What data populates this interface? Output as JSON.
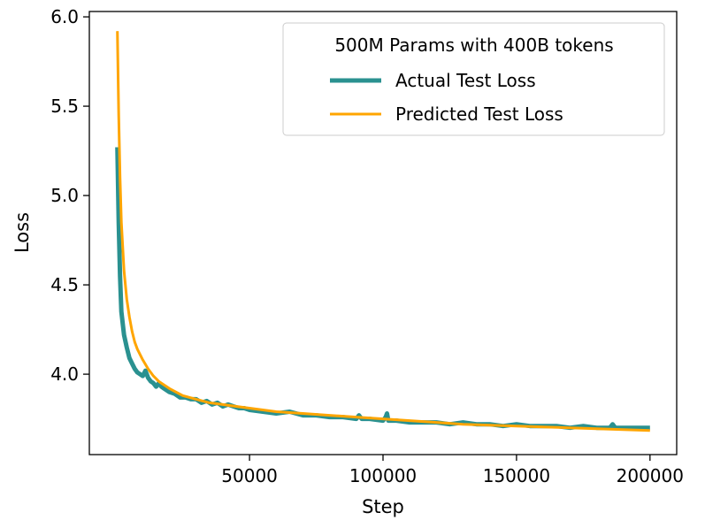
{
  "chart_data": {
    "type": "line",
    "title": "",
    "xlabel": "Step",
    "ylabel": "Loss",
    "xlim": [
      -10000,
      210000
    ],
    "ylim": [
      3.55,
      6.03
    ],
    "xticks": [
      50000,
      100000,
      150000,
      200000
    ],
    "yticks": [
      4.0,
      4.5,
      5.0,
      5.5,
      6.0
    ],
    "xtick_labels": [
      "50000",
      "100000",
      "150000",
      "200000"
    ],
    "ytick_labels": [
      "4.0",
      "4.5",
      "5.0",
      "5.5",
      "6.0"
    ],
    "grid": false,
    "legend": {
      "title": "500M Params with 400B tokens",
      "placement": "top-right"
    },
    "series": [
      {
        "name": "Actual Test Loss",
        "color": "#2a9190",
        "x": [
          500,
          1000,
          1500,
          2000,
          3000,
          4000,
          5000,
          6000,
          7000,
          8000,
          9000,
          10000,
          11000,
          12000,
          13000,
          14000,
          15000,
          16000,
          17000,
          18000,
          20000,
          22000,
          24000,
          26000,
          28000,
          30000,
          32000,
          34000,
          36000,
          38000,
          40000,
          42000,
          44000,
          46000,
          48000,
          50000,
          55000,
          60000,
          65000,
          70000,
          75000,
          80000,
          85000,
          90000,
          91000,
          92000,
          95000,
          100000,
          101000,
          101500,
          102000,
          105000,
          110000,
          115000,
          120000,
          125000,
          130000,
          135000,
          140000,
          145000,
          150000,
          155000,
          160000,
          165000,
          170000,
          175000,
          180000,
          185000,
          186000,
          187000,
          190000,
          195000,
          200000
        ],
        "y": [
          5.27,
          4.85,
          4.55,
          4.35,
          4.22,
          4.15,
          4.09,
          4.06,
          4.03,
          4.01,
          4.0,
          3.99,
          4.02,
          3.98,
          3.96,
          3.95,
          3.93,
          3.95,
          3.93,
          3.92,
          3.9,
          3.89,
          3.87,
          3.87,
          3.86,
          3.86,
          3.84,
          3.85,
          3.83,
          3.84,
          3.82,
          3.83,
          3.82,
          3.81,
          3.81,
          3.8,
          3.79,
          3.78,
          3.79,
          3.77,
          3.77,
          3.76,
          3.76,
          3.75,
          3.77,
          3.75,
          3.75,
          3.74,
          3.76,
          3.78,
          3.74,
          3.74,
          3.73,
          3.73,
          3.73,
          3.72,
          3.73,
          3.72,
          3.72,
          3.71,
          3.72,
          3.71,
          3.71,
          3.71,
          3.7,
          3.71,
          3.7,
          3.7,
          3.72,
          3.7,
          3.7,
          3.7,
          3.7
        ]
      },
      {
        "name": "Predicted Test Loss",
        "color": "#ffa500",
        "x": [
          500,
          1000,
          1500,
          2000,
          3000,
          4000,
          5000,
          6000,
          7000,
          8000,
          10000,
          12000,
          14000,
          16000,
          18000,
          20000,
          25000,
          30000,
          35000,
          40000,
          45000,
          50000,
          60000,
          70000,
          80000,
          90000,
          100000,
          110000,
          120000,
          130000,
          140000,
          150000,
          160000,
          170000,
          180000,
          190000,
          200000
        ],
        "y": [
          5.92,
          5.45,
          5.1,
          4.85,
          4.58,
          4.42,
          4.32,
          4.24,
          4.18,
          4.14,
          4.08,
          4.03,
          3.99,
          3.96,
          3.94,
          3.92,
          3.88,
          3.86,
          3.84,
          3.83,
          3.82,
          3.81,
          3.79,
          3.78,
          3.77,
          3.76,
          3.75,
          3.74,
          3.73,
          3.72,
          3.715,
          3.71,
          3.705,
          3.7,
          3.695,
          3.69,
          3.685
        ]
      }
    ]
  }
}
